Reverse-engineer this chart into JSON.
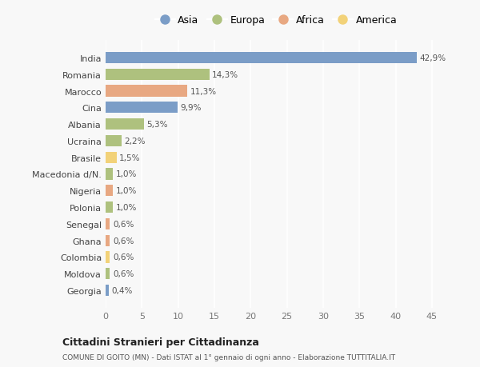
{
  "categories": [
    "Georgia",
    "Moldova",
    "Colombia",
    "Ghana",
    "Senegal",
    "Polonia",
    "Nigeria",
    "Macedonia d/N.",
    "Brasile",
    "Ucraina",
    "Albania",
    "Cina",
    "Marocco",
    "Romania",
    "India"
  ],
  "values": [
    0.4,
    0.6,
    0.6,
    0.6,
    0.6,
    1.0,
    1.0,
    1.0,
    1.5,
    2.2,
    5.3,
    9.9,
    11.3,
    14.3,
    42.9
  ],
  "labels": [
    "0,4%",
    "0,6%",
    "0,6%",
    "0,6%",
    "0,6%",
    "1,0%",
    "1,0%",
    "1,0%",
    "1,5%",
    "2,2%",
    "5,3%",
    "9,9%",
    "11,3%",
    "14,3%",
    "42,9%"
  ],
  "continents": [
    "Asia",
    "Europa",
    "America",
    "Africa",
    "Africa",
    "Europa",
    "Africa",
    "Europa",
    "America",
    "Europa",
    "Europa",
    "Asia",
    "Africa",
    "Europa",
    "Asia"
  ],
  "continent_colors": {
    "Asia": "#7b9dc7",
    "Europa": "#aec17e",
    "Africa": "#e8a882",
    "America": "#f2d279"
  },
  "legend_order": [
    "Asia",
    "Europa",
    "Africa",
    "America"
  ],
  "title1": "Cittadini Stranieri per Cittadinanza",
  "title2": "COMUNE DI GOITO (MN) - Dati ISTAT al 1° gennaio di ogni anno - Elaborazione TUTTITALIA.IT",
  "xlim": [
    0,
    47
  ],
  "xticks": [
    0,
    5,
    10,
    15,
    20,
    25,
    30,
    35,
    40,
    45
  ],
  "background_color": "#f8f8f8",
  "bar_height": 0.68
}
